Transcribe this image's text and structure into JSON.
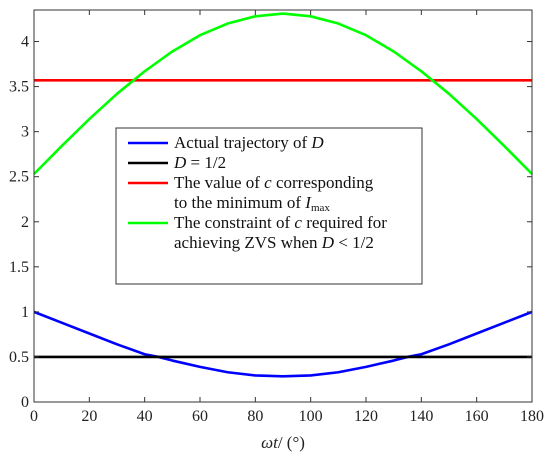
{
  "chart_data": {
    "type": "line",
    "xlabel_italic": "ωt",
    "xlabel_rest": "/ (°)",
    "ylabel": "",
    "xlim": [
      0,
      180
    ],
    "ylim": [
      0,
      4.35
    ],
    "xticks": [
      0,
      20,
      40,
      60,
      80,
      100,
      120,
      140,
      160,
      180
    ],
    "yticks": [
      0,
      0.5,
      1,
      1.5,
      2,
      2.5,
      3,
      3.5,
      4
    ],
    "ytick_labels": [
      "0",
      "0.5",
      "1",
      "1.5",
      "2",
      "2.5",
      "3",
      "3.5",
      "4"
    ],
    "x": [
      0,
      10,
      20,
      30,
      40,
      45,
      50,
      60,
      70,
      80,
      90,
      100,
      110,
      120,
      130,
      135,
      140,
      150,
      160,
      170,
      180
    ],
    "series": [
      {
        "color": "#0000ff",
        "values": [
          1.0,
          0.88,
          0.76,
          0.64,
          0.53,
          0.5,
          0.46,
          0.39,
          0.33,
          0.295,
          0.285,
          0.295,
          0.33,
          0.39,
          0.46,
          0.5,
          0.53,
          0.64,
          0.76,
          0.88,
          1.0
        ]
      },
      {
        "color": "#000000",
        "values": [
          0.5,
          0.5,
          0.5,
          0.5,
          0.5,
          0.5,
          0.5,
          0.5,
          0.5,
          0.5,
          0.5,
          0.5,
          0.5,
          0.5,
          0.5,
          0.5,
          0.5,
          0.5,
          0.5,
          0.5,
          0.5
        ]
      },
      {
        "color": "#ff0000",
        "values": [
          3.57,
          3.57,
          3.57,
          3.57,
          3.57,
          3.57,
          3.57,
          3.57,
          3.57,
          3.57,
          3.57,
          3.57,
          3.57,
          3.57,
          3.57,
          3.57,
          3.57,
          3.57,
          3.57,
          3.57,
          3.57
        ]
      },
      {
        "color": "#00ff00",
        "values": [
          2.53,
          2.84,
          3.14,
          3.42,
          3.67,
          3.78,
          3.89,
          4.07,
          4.2,
          4.28,
          4.31,
          4.28,
          4.2,
          4.07,
          3.89,
          3.78,
          3.67,
          3.42,
          3.14,
          2.84,
          2.53
        ]
      }
    ],
    "legend": [
      {
        "color": "#0000ff",
        "lines": [
          {
            "parts": [
              {
                "t": "Actual trajectory of ",
                "i": false
              },
              {
                "t": "D",
                "i": true
              }
            ]
          }
        ]
      },
      {
        "color": "#000000",
        "lines": [
          {
            "parts": [
              {
                "t": "D",
                "i": true
              },
              {
                "t": " = 1/2",
                "i": false
              }
            ]
          }
        ]
      },
      {
        "color": "#ff0000",
        "lines": [
          {
            "parts": [
              {
                "t": "The value of ",
                "i": false
              },
              {
                "t": "c",
                "i": true
              },
              {
                "t": " corresponding",
                "i": false
              }
            ]
          },
          {
            "parts": [
              {
                "t": "to the minimum of ",
                "i": false
              },
              {
                "t": "I",
                "i": true
              },
              {
                "t": "max",
                "i": false,
                "sub": true
              }
            ]
          }
        ]
      },
      {
        "color": "#00ff00",
        "lines": [
          {
            "parts": [
              {
                "t": "The constraint of  ",
                "i": false
              },
              {
                "t": "c",
                "i": true
              },
              {
                "t": " required for",
                "i": false
              }
            ]
          },
          {
            "parts": [
              {
                "t": "achieving ZVS when ",
                "i": false
              },
              {
                "t": "D",
                "i": true
              },
              {
                "t": " < 1/2",
                "i": false
              }
            ]
          }
        ]
      }
    ],
    "legend_placement": "center",
    "grid": false
  }
}
